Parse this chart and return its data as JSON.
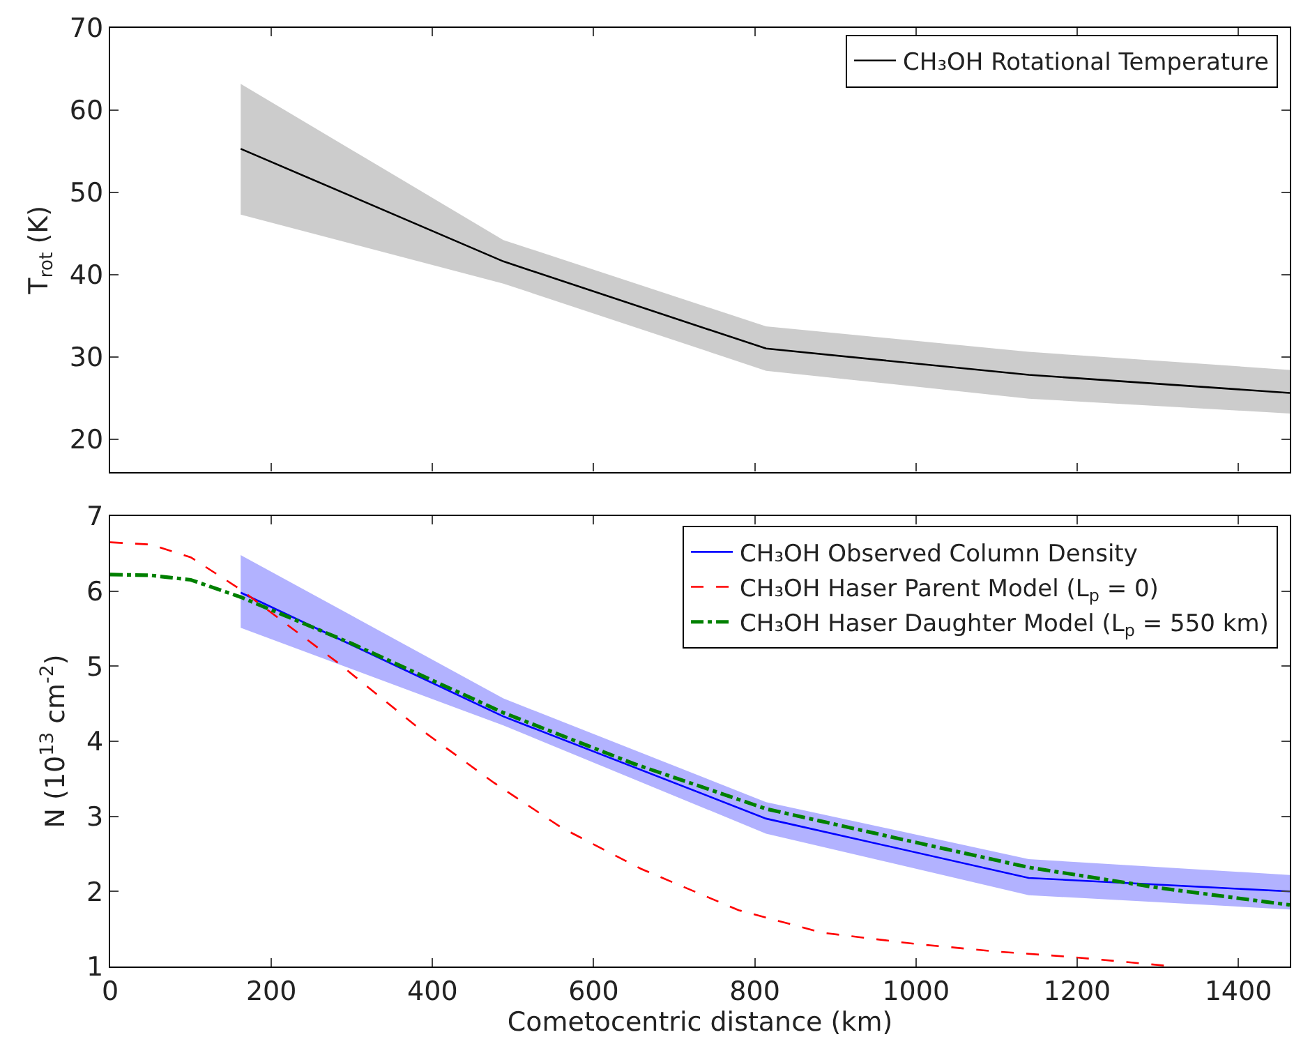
{
  "chart_data": [
    {
      "type": "line",
      "ylabel": "T$_{rot}$ (K)",
      "xlim": [
        0,
        1464
      ],
      "xticks": [
        0,
        200,
        400,
        600,
        800,
        1000,
        1200,
        1400
      ],
      "ylim": [
        16,
        70
      ],
      "yticks": [
        20,
        30,
        40,
        50,
        60,
        70
      ],
      "tick_labels": "y",
      "legend": "top right",
      "marker": "none",
      "series": [
        {
          "name": "CH₃OH Rotational Temperature",
          "color": "#000000",
          "line_style": "solid",
          "x": [
            162,
            488,
            814,
            1140,
            1464
          ],
          "values": [
            55.3,
            41.6,
            31.0,
            27.8,
            25.6
          ],
          "lower": [
            47.3,
            38.9,
            28.3,
            24.9,
            23.1
          ],
          "upper": [
            63.2,
            44.2,
            33.7,
            30.6,
            28.4
          ]
        }
      ]
    },
    {
      "type": "line",
      "xlabel": "Cometocentric distance (km)",
      "ylabel": "N (10$^{13}$ cm$^{-2}$)",
      "xlim": [
        0,
        1464
      ],
      "xticks": [
        0,
        200,
        400,
        600,
        800,
        1000,
        1200,
        1400
      ],
      "ylim": [
        1,
        7
      ],
      "yticks": [
        1,
        2,
        3,
        4,
        5,
        6,
        7
      ],
      "legend": "top right",
      "marker": "none",
      "series": [
        {
          "name": "CH₃OH Observed Column Density",
          "color": "#0000ff",
          "line_style": "solid",
          "x": [
            162,
            488,
            814,
            1140,
            1464
          ],
          "values": [
            5.98,
            4.33,
            2.97,
            2.18,
            2.0
          ],
          "lower": [
            5.51,
            4.21,
            2.77,
            1.95,
            1.76
          ],
          "upper": [
            6.48,
            4.57,
            3.19,
            2.43,
            2.22
          ]
        },
        {
          "name": "CH₃OH Haser Parent Model (L$_{p}$ = 0)",
          "color": "#ff0000",
          "line_style": "dashed",
          "x": [
            0,
            50,
            100,
            162,
            220,
            282,
            380,
            476,
            560,
            659,
            780,
            884,
            1000,
            1100,
            1190,
            1322
          ],
          "values": [
            6.65,
            6.62,
            6.45,
            6.02,
            5.55,
            5.05,
            4.2,
            3.45,
            2.85,
            2.3,
            1.75,
            1.45,
            1.3,
            1.2,
            1.13,
            1.0
          ]
        },
        {
          "name": "CH₃OH Haser Daughter Model (L$_{p}$ = 550 km)",
          "color": "#008000",
          "line_style": "dashdot",
          "x": [
            0,
            50,
            100,
            162,
            300,
            488,
            650,
            814,
            980,
            1140,
            1300,
            1464
          ],
          "values": [
            6.22,
            6.21,
            6.15,
            5.92,
            5.3,
            4.38,
            3.7,
            3.1,
            2.7,
            2.32,
            2.05,
            1.82
          ]
        }
      ]
    }
  ]
}
